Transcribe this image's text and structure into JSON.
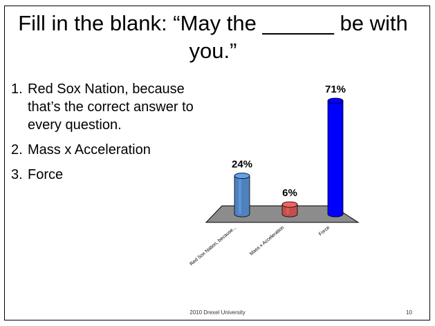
{
  "slide": {
    "title": "Fill in the blank:  “May the ______ be with you.”",
    "options": [
      {
        "number": "1.",
        "text": "Red Sox Nation, because that’s the correct answer to every question."
      },
      {
        "number": "2.",
        "text": "Mass x Acceleration"
      },
      {
        "number": "3.",
        "text": "Force"
      }
    ],
    "footer": "2010 Drexel University",
    "page_number": "10"
  },
  "chart_data": {
    "type": "bar",
    "categories": [
      "Red Sox Nation, because...",
      "Mass x Acceleration",
      "Force"
    ],
    "values": [
      24,
      6,
      71
    ],
    "value_labels": [
      "24%",
      "6%",
      "71%"
    ],
    "colors": [
      "#4f81bd",
      "#c0504d",
      "#0000ff"
    ],
    "ylim": [
      0,
      71
    ],
    "grid": false,
    "legend": "none",
    "style": "3d-cylinder"
  }
}
